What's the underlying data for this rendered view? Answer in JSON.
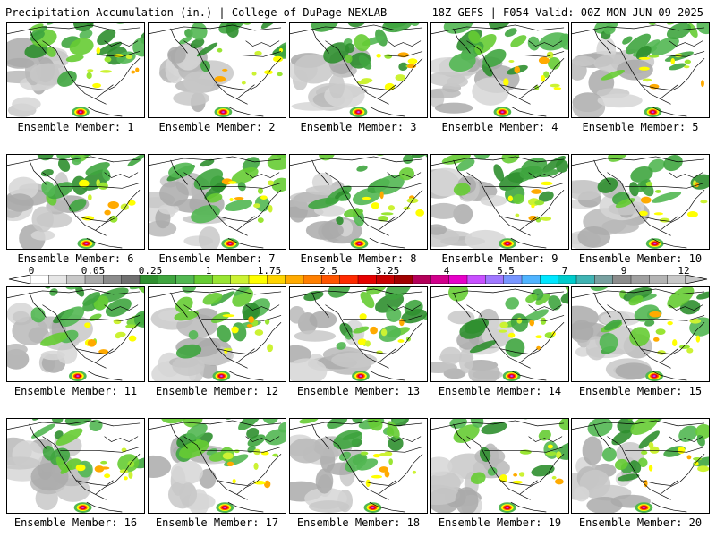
{
  "title": {
    "left": "Precipitation Accumulation (in.) | College of DuPage NEXLAB",
    "right": "18Z GEFS | F054 Valid: 00Z MON JUN 09 2025"
  },
  "member_prefix": "Ensemble Member:",
  "members": [
    "1",
    "2",
    "3",
    "4",
    "5",
    "6",
    "7",
    "8",
    "9",
    "10",
    "11",
    "12",
    "13",
    "14",
    "15",
    "16",
    "17",
    "18",
    "19",
    "20"
  ],
  "scale": {
    "tick_labels": [
      "0",
      "0.05",
      "0.25",
      "1",
      "1.75",
      "2.5",
      "3.25",
      "4",
      "5.5",
      "7",
      "9",
      "12"
    ],
    "colors": [
      "#ffffff",
      "#e6e6e6",
      "#c8c8c8",
      "#aaaaaa",
      "#8c8c8c",
      "#707070",
      "#2f8f2f",
      "#3fa53f",
      "#52b752",
      "#66cc33",
      "#99e533",
      "#ccf233",
      "#ffff00",
      "#ffd400",
      "#ffaa00",
      "#ff7f00",
      "#ff5500",
      "#ff2a00",
      "#e60000",
      "#c80000",
      "#a00000",
      "#b4005a",
      "#d2008c",
      "#e600c8",
      "#c850ff",
      "#a078ff",
      "#7896ff",
      "#50b4ff",
      "#00e6ff",
      "#00cccc",
      "#40b4b4",
      "#78a0a0",
      "#8c8c8c",
      "#a0a0a0",
      "#b4b4b4",
      "#c8c8c8"
    ],
    "rain_colors": [
      "#2f8f2f",
      "#52b752",
      "#66cc33",
      "#ccf233",
      "#ffff00",
      "#ffaa00",
      "#ff5500",
      "#e60000",
      "#d2008c",
      "#c850ff"
    ]
  }
}
